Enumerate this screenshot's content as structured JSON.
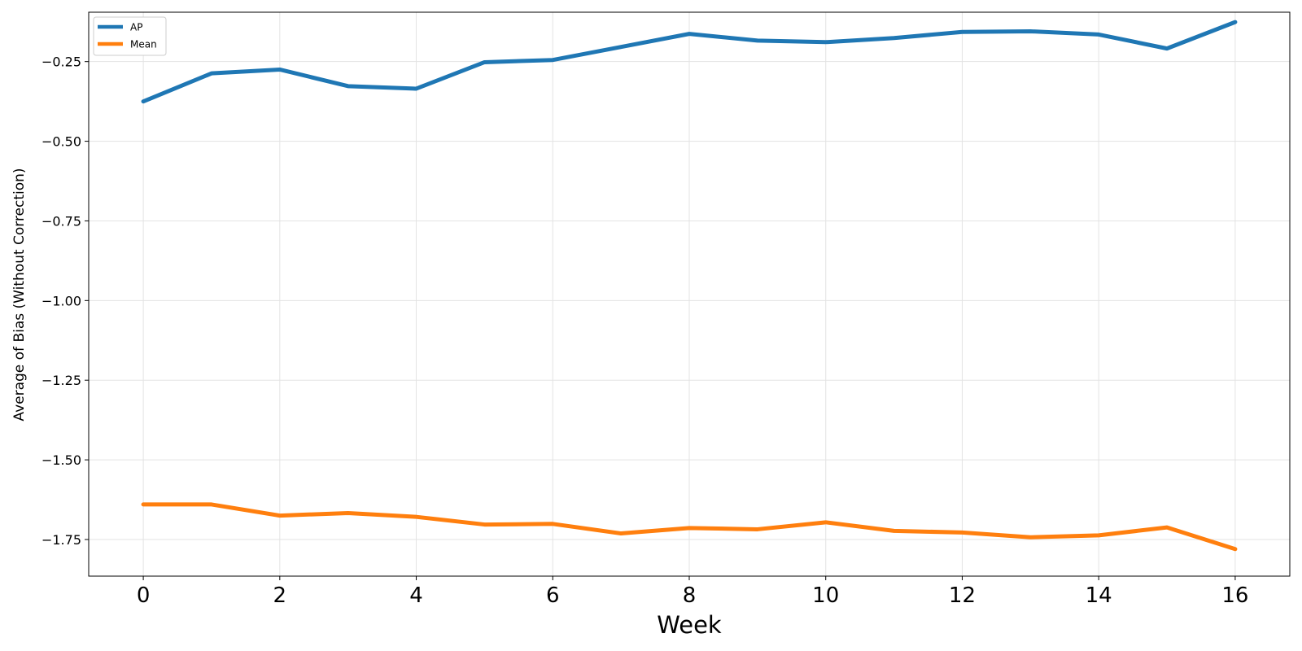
{
  "chart_data": {
    "type": "line",
    "title": "",
    "xlabel": "Week",
    "ylabel": "Average of Bias (Without Correction)",
    "xlim": [
      -0.8,
      16.8
    ],
    "ylim": [
      -1.865,
      -0.095
    ],
    "x_ticks": [
      0,
      2,
      4,
      6,
      8,
      10,
      12,
      14,
      16
    ],
    "y_ticks": [
      -0.25,
      -0.5,
      -0.75,
      -1.0,
      -1.25,
      -1.5,
      -1.75
    ],
    "y_tick_labels": [
      "−0.25",
      "−0.50",
      "−0.75",
      "−1.00",
      "−1.25",
      "−1.50",
      "−1.75"
    ],
    "grid": true,
    "legend": "top-left",
    "x": [
      0,
      1,
      2,
      3,
      4,
      5,
      6,
      7,
      8,
      9,
      10,
      11,
      12,
      13,
      14,
      15,
      16
    ],
    "series": [
      {
        "name": "AP",
        "color": "#1f77b4",
        "values": [
          -0.375,
          -0.287,
          -0.275,
          -0.327,
          -0.335,
          -0.252,
          -0.245,
          -0.204,
          -0.163,
          -0.184,
          -0.189,
          -0.176,
          -0.157,
          -0.155,
          -0.165,
          -0.209,
          -0.126
        ]
      },
      {
        "name": "Mean",
        "color": "#ff7f0e",
        "values": [
          -1.64,
          -1.64,
          -1.675,
          -1.667,
          -1.679,
          -1.703,
          -1.701,
          -1.731,
          -1.714,
          -1.718,
          -1.696,
          -1.723,
          -1.728,
          -1.743,
          -1.737,
          -1.712,
          -1.78
        ]
      }
    ]
  }
}
